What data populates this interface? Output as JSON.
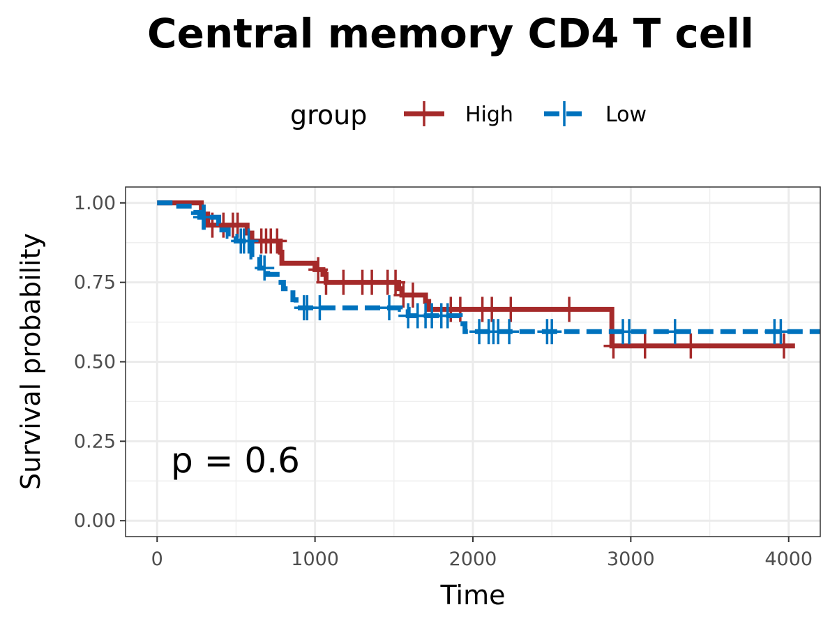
{
  "chart_data": {
    "type": "line",
    "subtype": "kaplan-meier",
    "title": "Central memory CD4 T cell",
    "xlabel": "Time",
    "ylabel": "Survival probability",
    "xlim": [
      -200,
      4200
    ],
    "ylim": [
      -0.05,
      1.05
    ],
    "x_ticks": [
      0,
      1000,
      2000,
      3000,
      4000
    ],
    "x_tick_labels": [
      "0",
      "1000",
      "2000",
      "3000",
      "4000"
    ],
    "y_ticks": [
      0,
      0.25,
      0.5,
      0.75,
      1.0
    ],
    "y_tick_labels": [
      "0.00",
      "0.25",
      "0.50",
      "0.75",
      "1.00"
    ],
    "grid": true,
    "legend": {
      "title": "group",
      "position": "top",
      "entries": [
        "High",
        "Low"
      ]
    },
    "annotation": "p = 0.6",
    "series": [
      {
        "name": "High",
        "color": "#A52A2A",
        "line_style": "solid",
        "steps": [
          [
            0,
            1.0
          ],
          [
            280,
            0.965
          ],
          [
            320,
            0.93
          ],
          [
            570,
            0.905
          ],
          [
            600,
            0.88
          ],
          [
            780,
            0.845
          ],
          [
            790,
            0.81
          ],
          [
            1000,
            0.79
          ],
          [
            1050,
            0.775
          ],
          [
            1070,
            0.75
          ],
          [
            1530,
            0.73
          ],
          [
            1550,
            0.71
          ],
          [
            1700,
            0.69
          ],
          [
            1720,
            0.665
          ],
          [
            2880,
            0.55
          ],
          [
            4040,
            0.55
          ]
        ],
        "censor_times": [
          350,
          420,
          480,
          510,
          660,
          690,
          720,
          760,
          1020,
          1070,
          1180,
          1300,
          1360,
          1460,
          1510,
          1560,
          1620,
          1860,
          1920,
          2060,
          2120,
          2240,
          2610,
          2890,
          3090,
          3380,
          3970
        ]
      },
      {
        "name": "Low",
        "color": "#0072BD",
        "line_style": "dashed",
        "steps": [
          [
            0,
            1.0
          ],
          [
            110,
            0.99
          ],
          [
            230,
            0.97
          ],
          [
            270,
            0.955
          ],
          [
            390,
            0.935
          ],
          [
            410,
            0.915
          ],
          [
            450,
            0.895
          ],
          [
            500,
            0.88
          ],
          [
            600,
            0.83
          ],
          [
            650,
            0.795
          ],
          [
            700,
            0.775
          ],
          [
            760,
            0.75
          ],
          [
            800,
            0.73
          ],
          [
            860,
            0.695
          ],
          [
            880,
            0.67
          ],
          [
            1540,
            0.665
          ],
          [
            1590,
            0.645
          ],
          [
            1920,
            0.62
          ],
          [
            1950,
            0.595
          ],
          [
            4200,
            0.595
          ]
        ],
        "censor_times": [
          290,
          300,
          530,
          550,
          580,
          680,
          930,
          950,
          1030,
          1470,
          1590,
          1650,
          1700,
          1740,
          1800,
          1840,
          2040,
          2100,
          2130,
          2160,
          2230,
          2470,
          2500,
          2950,
          2990,
          3280,
          3910,
          3950
        ]
      }
    ]
  }
}
